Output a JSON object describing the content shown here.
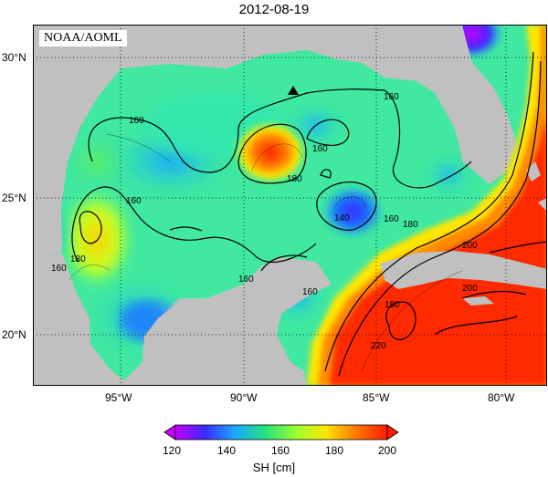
{
  "title": "2012-08-19",
  "credit": "NOAA/AOML",
  "lat_ticks": [
    "30°N",
    "25°N",
    "20°N"
  ],
  "lon_ticks": [
    "95°W",
    "90°W",
    "85°W",
    "80°W"
  ],
  "contour_labels": [
    "160",
    "160",
    "160",
    "160",
    "160",
    "160",
    "160",
    "180",
    "180",
    "180",
    "140",
    "160",
    "180",
    "200",
    "200",
    "220"
  ],
  "colorbar": {
    "ticks": [
      "120",
      "140",
      "160",
      "180",
      "200"
    ],
    "label": "SH [cm]",
    "colors": [
      "#c400ff",
      "#3a2cff",
      "#1aa8ff",
      "#22e080",
      "#9aff30",
      "#ffe600",
      "#ff7a00",
      "#ff1a00"
    ]
  },
  "colors": {
    "land": "#c0c0c0",
    "frame": "#000000"
  }
}
